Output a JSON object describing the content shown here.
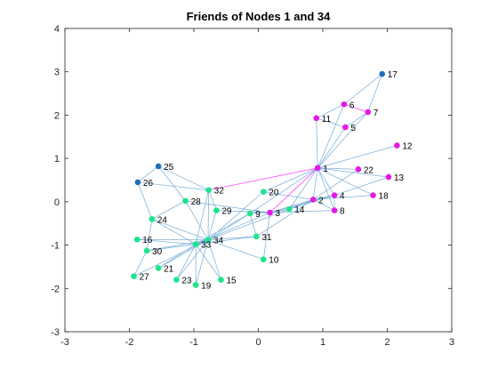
{
  "chart_data": {
    "type": "graph",
    "title": "Friends of Nodes 1 and 34",
    "xlim": [
      -3,
      3
    ],
    "ylim": [
      -3,
      4
    ],
    "xticks": [
      "-3",
      "-2",
      "-1",
      "0",
      "1",
      "2",
      "3"
    ],
    "yticks": [
      "-3",
      "-2",
      "-1",
      "0",
      "1",
      "2",
      "3",
      "4"
    ],
    "grid": false,
    "colors": {
      "edge": "#6fa8d6",
      "highlight_edge": "#ff44ff",
      "friends_of_1": "#e619e6",
      "friends_of_34": "#19e68c",
      "other": "#1f6fb5"
    },
    "nodes": [
      {
        "id": "1",
        "x": 0.92,
        "y": 0.78,
        "group": "friends_of_1"
      },
      {
        "id": "2",
        "x": 0.85,
        "y": 0.05,
        "group": "friends_of_1"
      },
      {
        "id": "3",
        "x": 0.18,
        "y": -0.25,
        "group": "friends_of_1"
      },
      {
        "id": "4",
        "x": 1.18,
        "y": 0.15,
        "group": "friends_of_1"
      },
      {
        "id": "5",
        "x": 1.35,
        "y": 1.72,
        "group": "friends_of_1"
      },
      {
        "id": "6",
        "x": 1.33,
        "y": 2.25,
        "group": "friends_of_1"
      },
      {
        "id": "7",
        "x": 1.7,
        "y": 2.07,
        "group": "friends_of_1"
      },
      {
        "id": "8",
        "x": 1.18,
        "y": -0.2,
        "group": "friends_of_1"
      },
      {
        "id": "9",
        "x": -0.13,
        "y": -0.27,
        "group": "friends_of_34"
      },
      {
        "id": "10",
        "x": 0.08,
        "y": -1.33,
        "group": "friends_of_34"
      },
      {
        "id": "11",
        "x": 0.9,
        "y": 1.93,
        "group": "friends_of_1"
      },
      {
        "id": "12",
        "x": 2.15,
        "y": 1.3,
        "group": "friends_of_1"
      },
      {
        "id": "13",
        "x": 2.02,
        "y": 0.57,
        "group": "friends_of_1"
      },
      {
        "id": "14",
        "x": 0.48,
        "y": -0.17,
        "group": "friends_of_34"
      },
      {
        "id": "15",
        "x": -0.58,
        "y": -1.8,
        "group": "friends_of_34"
      },
      {
        "id": "16",
        "x": -1.88,
        "y": -0.87,
        "group": "friends_of_34"
      },
      {
        "id": "17",
        "x": 1.92,
        "y": 2.95,
        "group": "other"
      },
      {
        "id": "18",
        "x": 1.78,
        "y": 0.15,
        "group": "friends_of_1"
      },
      {
        "id": "19",
        "x": -0.97,
        "y": -1.92,
        "group": "friends_of_34"
      },
      {
        "id": "20",
        "x": 0.08,
        "y": 0.23,
        "group": "friends_of_34"
      },
      {
        "id": "21",
        "x": -1.55,
        "y": -1.53,
        "group": "friends_of_34"
      },
      {
        "id": "22",
        "x": 1.55,
        "y": 0.75,
        "group": "friends_of_1"
      },
      {
        "id": "23",
        "x": -1.27,
        "y": -1.8,
        "group": "friends_of_34"
      },
      {
        "id": "24",
        "x": -1.65,
        "y": -0.4,
        "group": "friends_of_34"
      },
      {
        "id": "25",
        "x": -1.55,
        "y": 0.82,
        "group": "other"
      },
      {
        "id": "26",
        "x": -1.87,
        "y": 0.45,
        "group": "other"
      },
      {
        "id": "27",
        "x": -1.93,
        "y": -1.72,
        "group": "friends_of_34"
      },
      {
        "id": "28",
        "x": -1.13,
        "y": 0.02,
        "group": "friends_of_34"
      },
      {
        "id": "29",
        "x": -0.65,
        "y": -0.2,
        "group": "friends_of_34"
      },
      {
        "id": "30",
        "x": -1.73,
        "y": -1.13,
        "group": "friends_of_34"
      },
      {
        "id": "31",
        "x": -0.03,
        "y": -0.8,
        "group": "friends_of_34"
      },
      {
        "id": "32",
        "x": -0.77,
        "y": 0.27,
        "group": "friends_of_34"
      },
      {
        "id": "33",
        "x": -0.97,
        "y": -0.98,
        "group": "friends_of_34"
      },
      {
        "id": "34",
        "x": -0.78,
        "y": -0.88,
        "group": "friends_of_34"
      }
    ],
    "edges": [
      [
        "1",
        "2"
      ],
      [
        "1",
        "3"
      ],
      [
        "1",
        "4"
      ],
      [
        "1",
        "5"
      ],
      [
        "1",
        "6"
      ],
      [
        "1",
        "7"
      ],
      [
        "1",
        "8"
      ],
      [
        "1",
        "9"
      ],
      [
        "1",
        "11"
      ],
      [
        "1",
        "12"
      ],
      [
        "1",
        "13"
      ],
      [
        "1",
        "14"
      ],
      [
        "1",
        "18"
      ],
      [
        "1",
        "20"
      ],
      [
        "1",
        "22"
      ],
      [
        "1",
        "32"
      ],
      [
        "2",
        "3"
      ],
      [
        "2",
        "4"
      ],
      [
        "2",
        "8"
      ],
      [
        "2",
        "14"
      ],
      [
        "2",
        "18"
      ],
      [
        "2",
        "20"
      ],
      [
        "2",
        "22"
      ],
      [
        "2",
        "31"
      ],
      [
        "3",
        "4"
      ],
      [
        "3",
        "8"
      ],
      [
        "3",
        "9"
      ],
      [
        "3",
        "10"
      ],
      [
        "3",
        "14"
      ],
      [
        "3",
        "28"
      ],
      [
        "3",
        "29"
      ],
      [
        "3",
        "33"
      ],
      [
        "4",
        "8"
      ],
      [
        "4",
        "13"
      ],
      [
        "4",
        "14"
      ],
      [
        "5",
        "7"
      ],
      [
        "5",
        "11"
      ],
      [
        "6",
        "7"
      ],
      [
        "6",
        "11"
      ],
      [
        "6",
        "17"
      ],
      [
        "7",
        "17"
      ],
      [
        "9",
        "31"
      ],
      [
        "9",
        "33"
      ],
      [
        "9",
        "34"
      ],
      [
        "10",
        "34"
      ],
      [
        "14",
        "34"
      ],
      [
        "15",
        "33"
      ],
      [
        "15",
        "34"
      ],
      [
        "16",
        "33"
      ],
      [
        "16",
        "34"
      ],
      [
        "19",
        "33"
      ],
      [
        "19",
        "34"
      ],
      [
        "20",
        "34"
      ],
      [
        "21",
        "33"
      ],
      [
        "21",
        "34"
      ],
      [
        "23",
        "33"
      ],
      [
        "23",
        "34"
      ],
      [
        "24",
        "26"
      ],
      [
        "24",
        "28"
      ],
      [
        "24",
        "30"
      ],
      [
        "24",
        "33"
      ],
      [
        "24",
        "34"
      ],
      [
        "25",
        "26"
      ],
      [
        "25",
        "28"
      ],
      [
        "25",
        "32"
      ],
      [
        "26",
        "32"
      ],
      [
        "27",
        "30"
      ],
      [
        "27",
        "34"
      ],
      [
        "28",
        "34"
      ],
      [
        "29",
        "32"
      ],
      [
        "29",
        "34"
      ],
      [
        "30",
        "33"
      ],
      [
        "30",
        "34"
      ],
      [
        "31",
        "33"
      ],
      [
        "31",
        "34"
      ],
      [
        "32",
        "33"
      ],
      [
        "32",
        "34"
      ],
      [
        "33",
        "34"
      ]
    ],
    "highlight_edges": [
      [
        "1",
        "32"
      ],
      [
        "1",
        "3"
      ],
      [
        "6",
        "7"
      ]
    ]
  }
}
